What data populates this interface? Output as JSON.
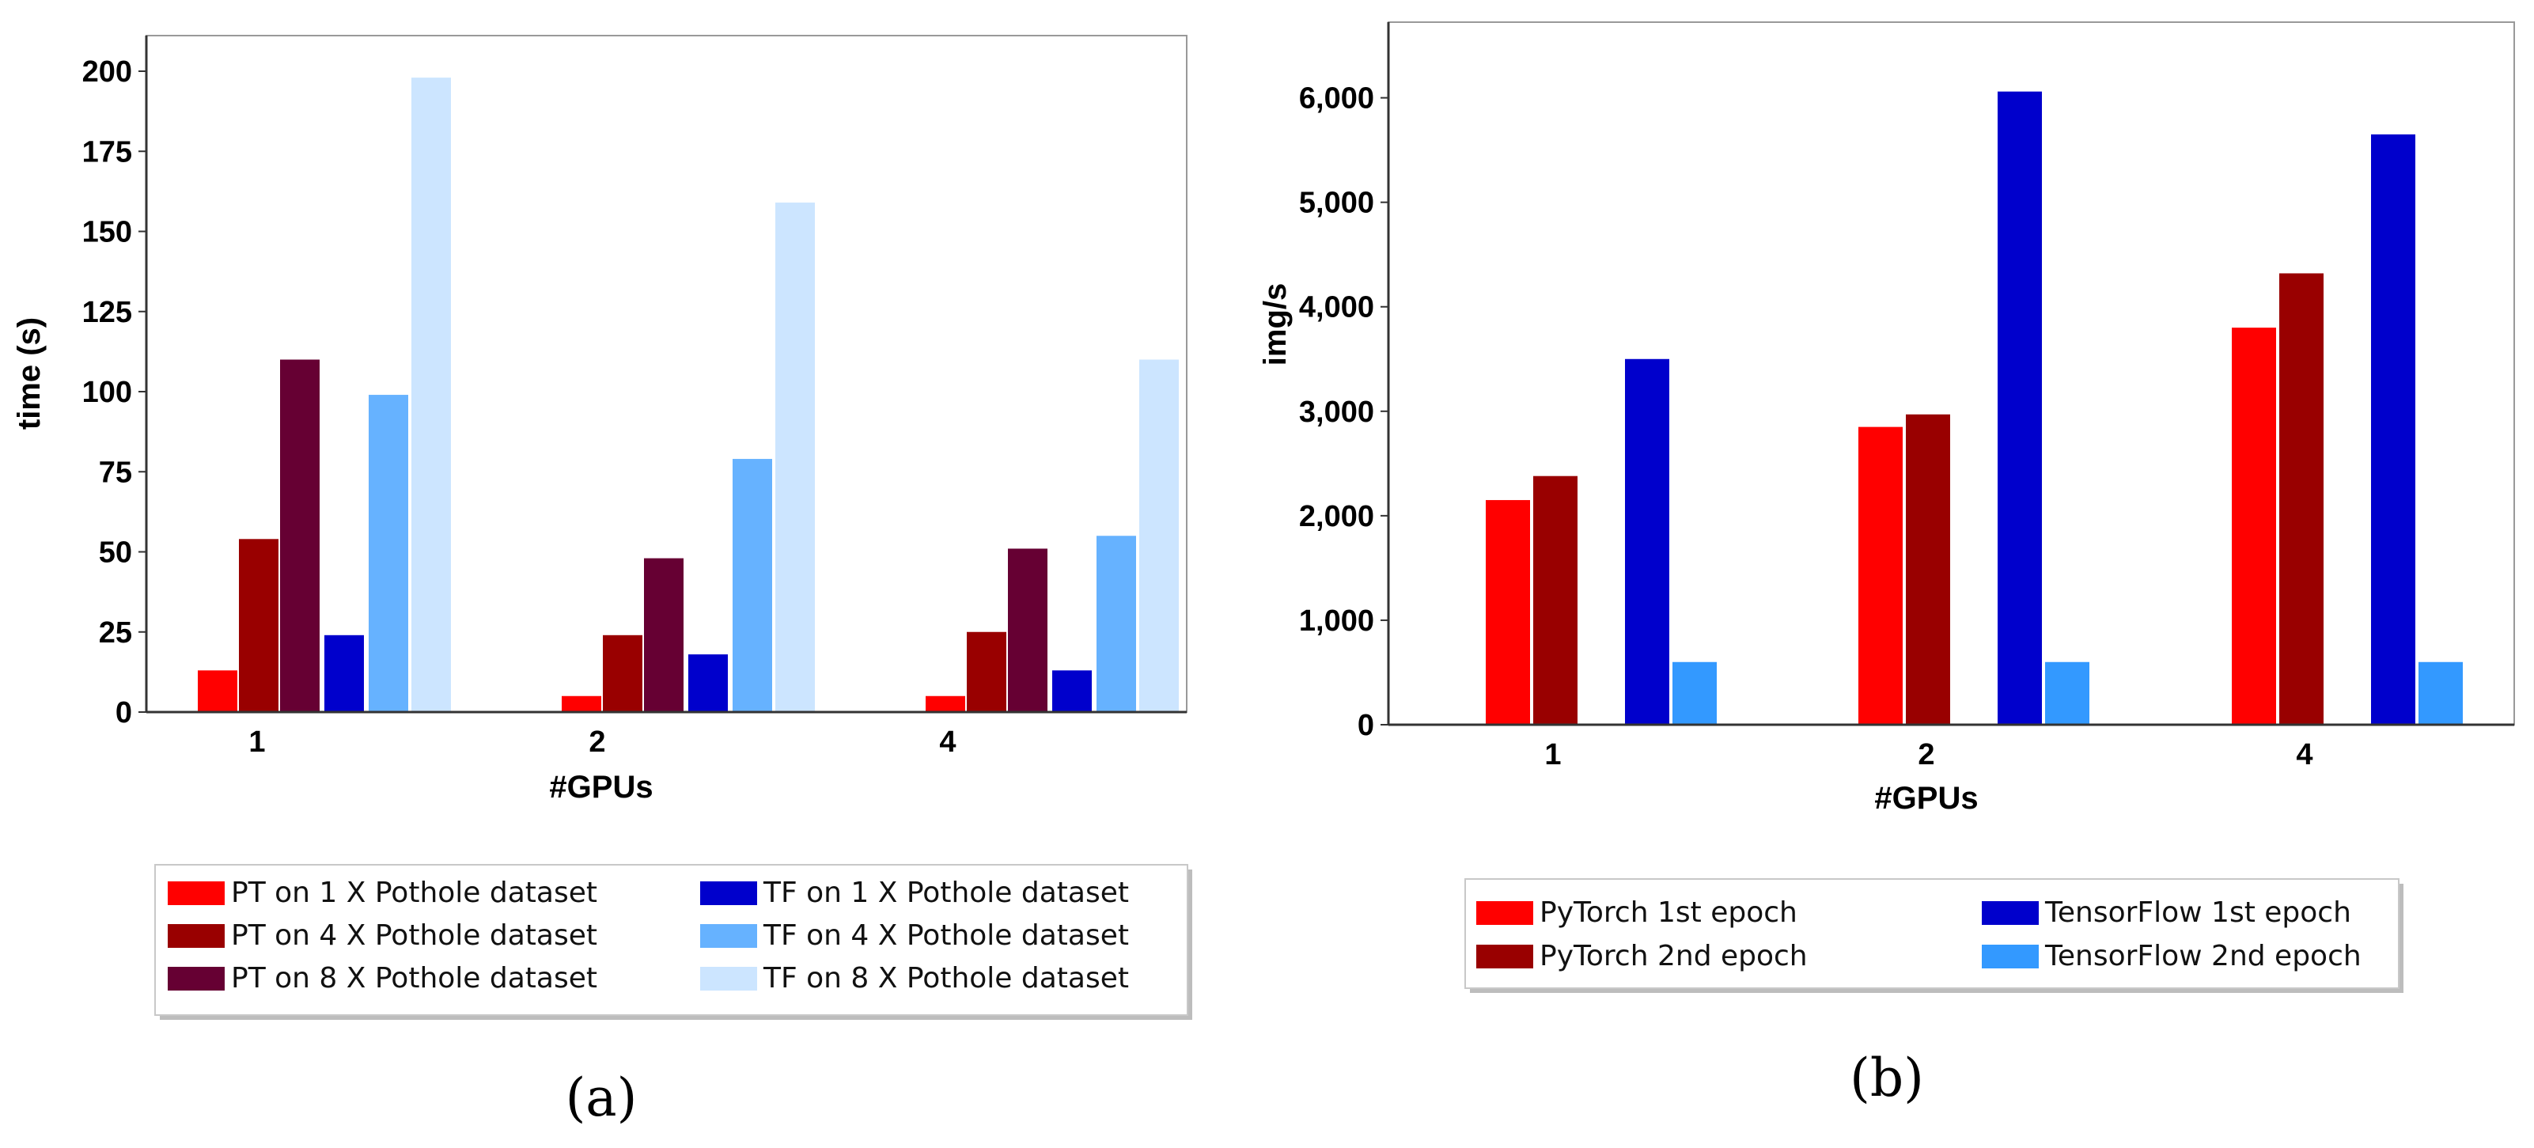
{
  "chart_data": [
    {
      "type": "bar",
      "xlabel": "#GPUs",
      "ylabel": "time (s)",
      "categories": [
        "1",
        "2",
        "4"
      ],
      "ylim": [
        0,
        200
      ],
      "yticks": [
        "0",
        "25",
        "50",
        "75",
        "100",
        "125",
        "150",
        "175",
        "200"
      ],
      "grid": false,
      "legend_position": "bottom",
      "series": [
        {
          "name": "PT on 1 X Pothole dataset",
          "color": "#ff0000",
          "values": [
            13,
            5,
            5
          ]
        },
        {
          "name": "PT on 4 X Pothole dataset",
          "color": "#990000",
          "values": [
            54,
            24,
            25
          ]
        },
        {
          "name": "PT on 8 X Pothole dataset",
          "color": "#660033",
          "values": [
            110,
            48,
            51
          ]
        },
        {
          "name": "TF on 1 X Pothole dataset",
          "color": "#0000cc",
          "values": [
            24,
            18,
            13
          ]
        },
        {
          "name": "TF on 4 X Pothole dataset",
          "color": "#66b2ff",
          "values": [
            99,
            79,
            55
          ]
        },
        {
          "name": "TF on 8 X Pothole dataset",
          "color": "#cce5ff",
          "values": [
            198,
            159,
            110
          ]
        }
      ],
      "caption": "(a)"
    },
    {
      "type": "bar",
      "xlabel": "#GPUs",
      "ylabel": "img/s",
      "categories": [
        "1",
        "2",
        "4"
      ],
      "ylim": [
        0,
        6300
      ],
      "yticks": [
        "0",
        "1,000",
        "2,000",
        "3,000",
        "4,000",
        "5,000",
        "6,000"
      ],
      "grid": false,
      "legend_position": "bottom",
      "series": [
        {
          "name": "PyTorch 1st epoch",
          "color": "#ff0000",
          "values": [
            2150,
            2850,
            3800
          ]
        },
        {
          "name": "PyTorch 2nd epoch",
          "color": "#990000",
          "values": [
            2380,
            2970,
            4320
          ]
        },
        {
          "name": "TensorFlow 1st epoch",
          "color": "#0000cc",
          "values": [
            3500,
            6060,
            5650
          ]
        },
        {
          "name": "TensorFlow 2nd epoch",
          "color": "#3399ff",
          "values": [
            600,
            600,
            600
          ]
        }
      ],
      "caption": "(b)"
    }
  ]
}
